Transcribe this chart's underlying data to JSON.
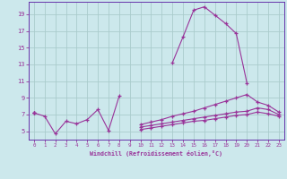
{
  "background_color": "#cce8ec",
  "grid_color": "#aacccc",
  "line_color": "#993399",
  "spine_color": "#6633aa",
  "xlabel": "Windchill (Refroidissement éolien,°C)",
  "xlim": [
    -0.5,
    23.5
  ],
  "ylim": [
    4.0,
    20.5
  ],
  "yticks": [
    5,
    7,
    9,
    11,
    13,
    15,
    17,
    19
  ],
  "xticks": [
    0,
    1,
    2,
    3,
    4,
    5,
    6,
    7,
    8,
    9,
    10,
    11,
    12,
    13,
    14,
    15,
    16,
    17,
    18,
    19,
    20,
    21,
    22,
    23
  ],
  "line1_x": [
    0,
    1,
    2,
    3,
    4,
    5,
    6,
    7,
    8,
    9,
    10,
    11,
    12,
    13,
    14,
    15,
    16,
    17,
    18,
    19,
    20,
    21,
    22,
    23
  ],
  "line1_y": [
    7.2,
    6.8,
    4.7,
    6.2,
    5.9,
    6.4,
    7.6,
    5.1,
    9.2,
    null,
    null,
    null,
    null,
    13.2,
    16.3,
    19.5,
    19.9,
    18.9,
    17.9,
    16.7,
    10.8,
    null,
    null,
    null
  ],
  "line2_x": [
    0,
    1,
    2,
    3,
    4,
    5,
    6,
    7,
    8,
    9,
    10,
    11,
    12,
    13,
    14,
    15,
    16,
    17,
    18,
    19,
    20,
    21,
    22,
    23
  ],
  "line2_y": [
    7.2,
    null,
    null,
    null,
    null,
    null,
    null,
    null,
    null,
    null,
    5.8,
    6.1,
    6.4,
    6.8,
    7.1,
    7.4,
    7.8,
    8.2,
    8.6,
    9.0,
    9.4,
    8.5,
    8.1,
    7.3
  ],
  "line3_x": [
    0,
    1,
    2,
    3,
    4,
    5,
    6,
    7,
    8,
    9,
    10,
    11,
    12,
    13,
    14,
    15,
    16,
    17,
    18,
    19,
    20,
    21,
    22,
    23
  ],
  "line3_y": [
    7.2,
    null,
    null,
    null,
    null,
    null,
    null,
    null,
    null,
    null,
    5.5,
    5.7,
    5.9,
    6.1,
    6.3,
    6.5,
    6.7,
    6.9,
    7.1,
    7.3,
    7.4,
    7.8,
    7.6,
    7.0
  ],
  "line4_x": [
    0,
    1,
    2,
    3,
    4,
    5,
    6,
    7,
    8,
    9,
    10,
    11,
    12,
    13,
    14,
    15,
    16,
    17,
    18,
    19,
    20,
    21,
    22,
    23
  ],
  "line4_y": [
    7.2,
    null,
    null,
    null,
    null,
    null,
    null,
    null,
    null,
    null,
    5.2,
    5.4,
    5.6,
    5.8,
    6.0,
    6.2,
    6.3,
    6.5,
    6.7,
    6.9,
    7.0,
    7.3,
    7.1,
    6.8
  ]
}
